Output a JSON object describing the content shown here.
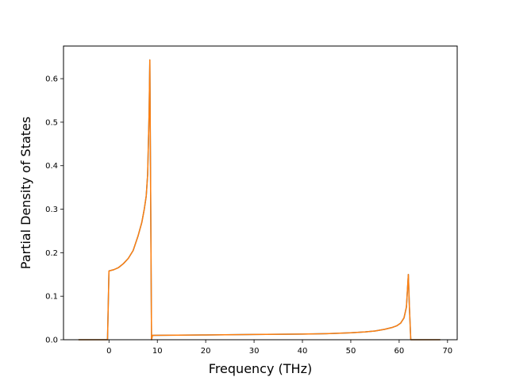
{
  "chart_data": {
    "type": "line",
    "title": "",
    "xlabel": "Frequency (THz)",
    "ylabel": "Partial Density of States",
    "xlim": [
      -9.4,
      72.0
    ],
    "ylim": [
      0.0,
      0.675
    ],
    "xticks": [
      0,
      10,
      20,
      30,
      40,
      50,
      60,
      70
    ],
    "yticks": [
      0.0,
      0.1,
      0.2,
      0.3,
      0.4,
      0.5,
      0.6
    ],
    "xtick_labels": [
      "0",
      "10",
      "20",
      "30",
      "40",
      "50",
      "60",
      "70"
    ],
    "ytick_labels": [
      "0.0",
      "0.1",
      "0.2",
      "0.3",
      "0.4",
      "0.5",
      "0.6"
    ],
    "grid": false,
    "legend": null,
    "series": [
      {
        "color": "#1f77b4",
        "x": [
          -6.3,
          -0.3,
          0.0,
          1.0,
          2.0,
          3.0,
          4.0,
          5.0,
          6.0,
          6.8,
          7.3,
          7.7,
          8.0,
          8.3,
          8.45,
          8.8,
          9.0,
          20.0,
          30.0,
          40.0,
          45.0,
          50.0,
          53.0,
          55.0,
          57.0,
          58.5,
          59.5,
          60.3,
          61.0,
          61.5,
          61.9,
          62.1,
          62.4,
          68.5
        ],
        "y": [
          0.0,
          0.0,
          0.158,
          0.161,
          0.166,
          0.175,
          0.187,
          0.205,
          0.238,
          0.27,
          0.3,
          0.33,
          0.38,
          0.52,
          0.643,
          0.0,
          0.01,
          0.011,
          0.012,
          0.013,
          0.014,
          0.016,
          0.018,
          0.02,
          0.024,
          0.028,
          0.032,
          0.038,
          0.05,
          0.075,
          0.15,
          0.08,
          0.0,
          0.0
        ]
      },
      {
        "color": "#ff7f0e",
        "x": [
          -6.3,
          -0.3,
          0.0,
          1.0,
          2.0,
          3.0,
          4.0,
          5.0,
          6.0,
          6.8,
          7.3,
          7.7,
          8.0,
          8.3,
          8.45,
          8.8,
          9.0,
          20.0,
          30.0,
          40.0,
          45.0,
          50.0,
          53.0,
          55.0,
          57.0,
          58.5,
          59.5,
          60.3,
          61.0,
          61.5,
          61.9,
          62.1,
          62.4,
          68.5
        ],
        "y": [
          0.0,
          0.0,
          0.158,
          0.161,
          0.166,
          0.175,
          0.187,
          0.205,
          0.238,
          0.27,
          0.3,
          0.33,
          0.38,
          0.52,
          0.643,
          0.0,
          0.01,
          0.011,
          0.012,
          0.013,
          0.014,
          0.016,
          0.018,
          0.02,
          0.024,
          0.028,
          0.032,
          0.038,
          0.05,
          0.075,
          0.15,
          0.08,
          0.0,
          0.0
        ]
      }
    ]
  }
}
